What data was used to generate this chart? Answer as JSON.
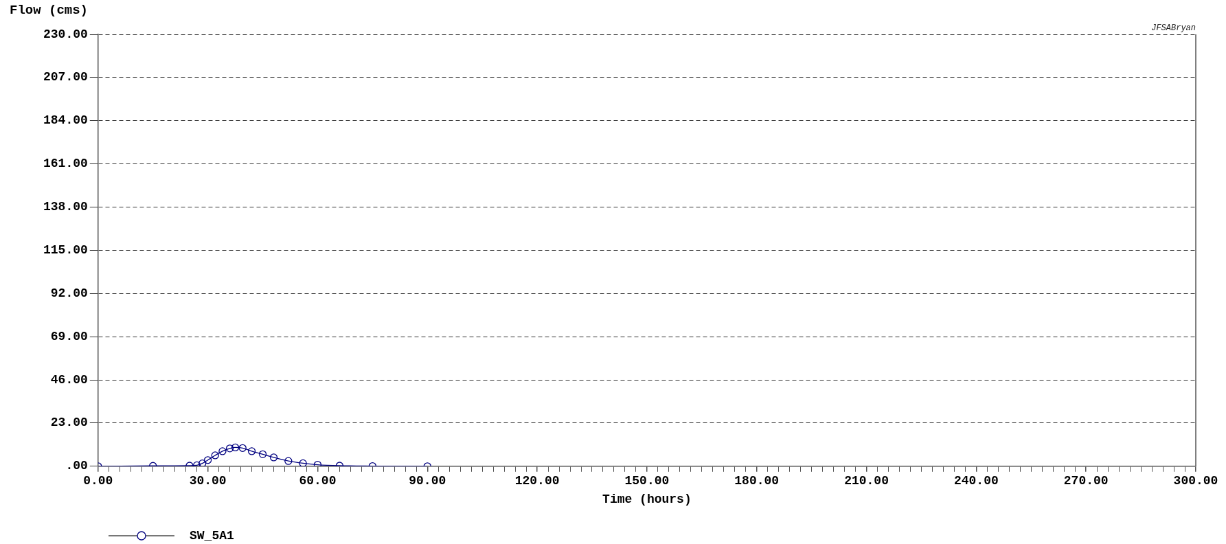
{
  "chart_data": {
    "type": "line",
    "ylabel": "Flow (cms)",
    "xlabel": "Time (hours)",
    "annotations": [
      "JFSABryan"
    ],
    "x": [
      0,
      15,
      25,
      27,
      28.5,
      30,
      32,
      34,
      36,
      37.5,
      39.5,
      42,
      45,
      48,
      52,
      56,
      60,
      66,
      75,
      90
    ],
    "series": [
      {
        "name": "SW_5A1",
        "color": "#000080",
        "values": [
          0,
          0.2,
          0.3,
          0.5,
          1.5,
          3.3,
          5.8,
          8,
          9.5,
          10,
          9.7,
          8,
          6.4,
          4.7,
          2.8,
          1.6,
          0.8,
          0.3,
          0.1,
          0
        ]
      }
    ],
    "marker": "circle",
    "legend": "bottom left",
    "grid": "y",
    "xlim": [
      0,
      300
    ],
    "ylim": [
      0,
      230
    ],
    "xticks": [
      {
        "value": 0,
        "label": "0.00"
      },
      {
        "value": 3,
        "label": null
      },
      {
        "value": 6,
        "label": null
      },
      {
        "value": 9,
        "label": null
      },
      {
        "value": 12,
        "label": null
      },
      {
        "value": 15,
        "label": null
      },
      {
        "value": 18,
        "label": null
      },
      {
        "value": 21,
        "label": null
      },
      {
        "value": 24,
        "label": null
      },
      {
        "value": 27,
        "label": null
      },
      {
        "value": 30,
        "label": "30.00"
      },
      {
        "value": 33,
        "label": null
      },
      {
        "value": 36,
        "label": null
      },
      {
        "value": 39,
        "label": null
      },
      {
        "value": 42,
        "label": null
      },
      {
        "value": 45,
        "label": null
      },
      {
        "value": 48,
        "label": null
      },
      {
        "value": 51,
        "label": null
      },
      {
        "value": 54,
        "label": null
      },
      {
        "value": 57,
        "label": null
      },
      {
        "value": 60,
        "label": "60.00"
      },
      {
        "value": 63,
        "label": null
      },
      {
        "value": 66,
        "label": null
      },
      {
        "value": 69,
        "label": null
      },
      {
        "value": 72,
        "label": null
      },
      {
        "value": 75,
        "label": null
      },
      {
        "value": 78,
        "label": null
      },
      {
        "value": 81,
        "label": null
      },
      {
        "value": 84,
        "label": null
      },
      {
        "value": 87,
        "label": null
      },
      {
        "value": 90,
        "label": "90.00"
      },
      {
        "value": 93,
        "label": null
      },
      {
        "value": 96,
        "label": null
      },
      {
        "value": 99,
        "label": null
      },
      {
        "value": 102,
        "label": null
      },
      {
        "value": 105,
        "label": null
      },
      {
        "value": 108,
        "label": null
      },
      {
        "value": 111,
        "label": null
      },
      {
        "value": 114,
        "label": null
      },
      {
        "value": 117,
        "label": null
      },
      {
        "value": 120,
        "label": "120.00"
      },
      {
        "value": 123,
        "label": null
      },
      {
        "value": 126,
        "label": null
      },
      {
        "value": 129,
        "label": null
      },
      {
        "value": 132,
        "label": null
      },
      {
        "value": 135,
        "label": null
      },
      {
        "value": 138,
        "label": null
      },
      {
        "value": 141,
        "label": null
      },
      {
        "value": 144,
        "label": null
      },
      {
        "value": 147,
        "label": null
      },
      {
        "value": 150,
        "label": "150.00"
      },
      {
        "value": 153,
        "label": null
      },
      {
        "value": 156,
        "label": null
      },
      {
        "value": 159,
        "label": null
      },
      {
        "value": 162,
        "label": null
      },
      {
        "value": 165,
        "label": null
      },
      {
        "value": 168,
        "label": null
      },
      {
        "value": 171,
        "label": null
      },
      {
        "value": 174,
        "label": null
      },
      {
        "value": 177,
        "label": null
      },
      {
        "value": 180,
        "label": "180.00"
      },
      {
        "value": 183,
        "label": null
      },
      {
        "value": 186,
        "label": null
      },
      {
        "value": 189,
        "label": null
      },
      {
        "value": 192,
        "label": null
      },
      {
        "value": 195,
        "label": null
      },
      {
        "value": 198,
        "label": null
      },
      {
        "value": 201,
        "label": null
      },
      {
        "value": 204,
        "label": null
      },
      {
        "value": 207,
        "label": null
      },
      {
        "value": 210,
        "label": "210.00"
      },
      {
        "value": 213,
        "label": null
      },
      {
        "value": 216,
        "label": null
      },
      {
        "value": 219,
        "label": null
      },
      {
        "value": 222,
        "label": null
      },
      {
        "value": 225,
        "label": null
      },
      {
        "value": 228,
        "label": null
      },
      {
        "value": 231,
        "label": null
      },
      {
        "value": 234,
        "label": null
      },
      {
        "value": 237,
        "label": null
      },
      {
        "value": 240,
        "label": "240.00"
      },
      {
        "value": 243,
        "label": null
      },
      {
        "value": 246,
        "label": null
      },
      {
        "value": 249,
        "label": null
      },
      {
        "value": 252,
        "label": null
      },
      {
        "value": 255,
        "label": null
      },
      {
        "value": 258,
        "label": null
      },
      {
        "value": 261,
        "label": null
      },
      {
        "value": 264,
        "label": null
      },
      {
        "value": 267,
        "label": null
      },
      {
        "value": 270,
        "label": "270.00"
      },
      {
        "value": 273,
        "label": null
      },
      {
        "value": 276,
        "label": null
      },
      {
        "value": 279,
        "label": null
      },
      {
        "value": 282,
        "label": null
      },
      {
        "value": 285,
        "label": null
      },
      {
        "value": 288,
        "label": null
      },
      {
        "value": 291,
        "label": null
      },
      {
        "value": 294,
        "label": null
      },
      {
        "value": 297,
        "label": null
      },
      {
        "value": 300,
        "label": "300.00"
      }
    ],
    "yticks": [
      {
        "value": 0,
        "label": ".00"
      },
      {
        "value": 23,
        "label": "23.00"
      },
      {
        "value": 46,
        "label": "46.00"
      },
      {
        "value": 69,
        "label": "69.00"
      },
      {
        "value": 92,
        "label": "92.00"
      },
      {
        "value": 115,
        "label": "115.00"
      },
      {
        "value": 138,
        "label": "138.00"
      },
      {
        "value": 161,
        "label": "161.00"
      },
      {
        "value": 184,
        "label": "184.00"
      },
      {
        "value": 207,
        "label": "207.00"
      },
      {
        "value": 230,
        "label": "230.00"
      }
    ]
  }
}
